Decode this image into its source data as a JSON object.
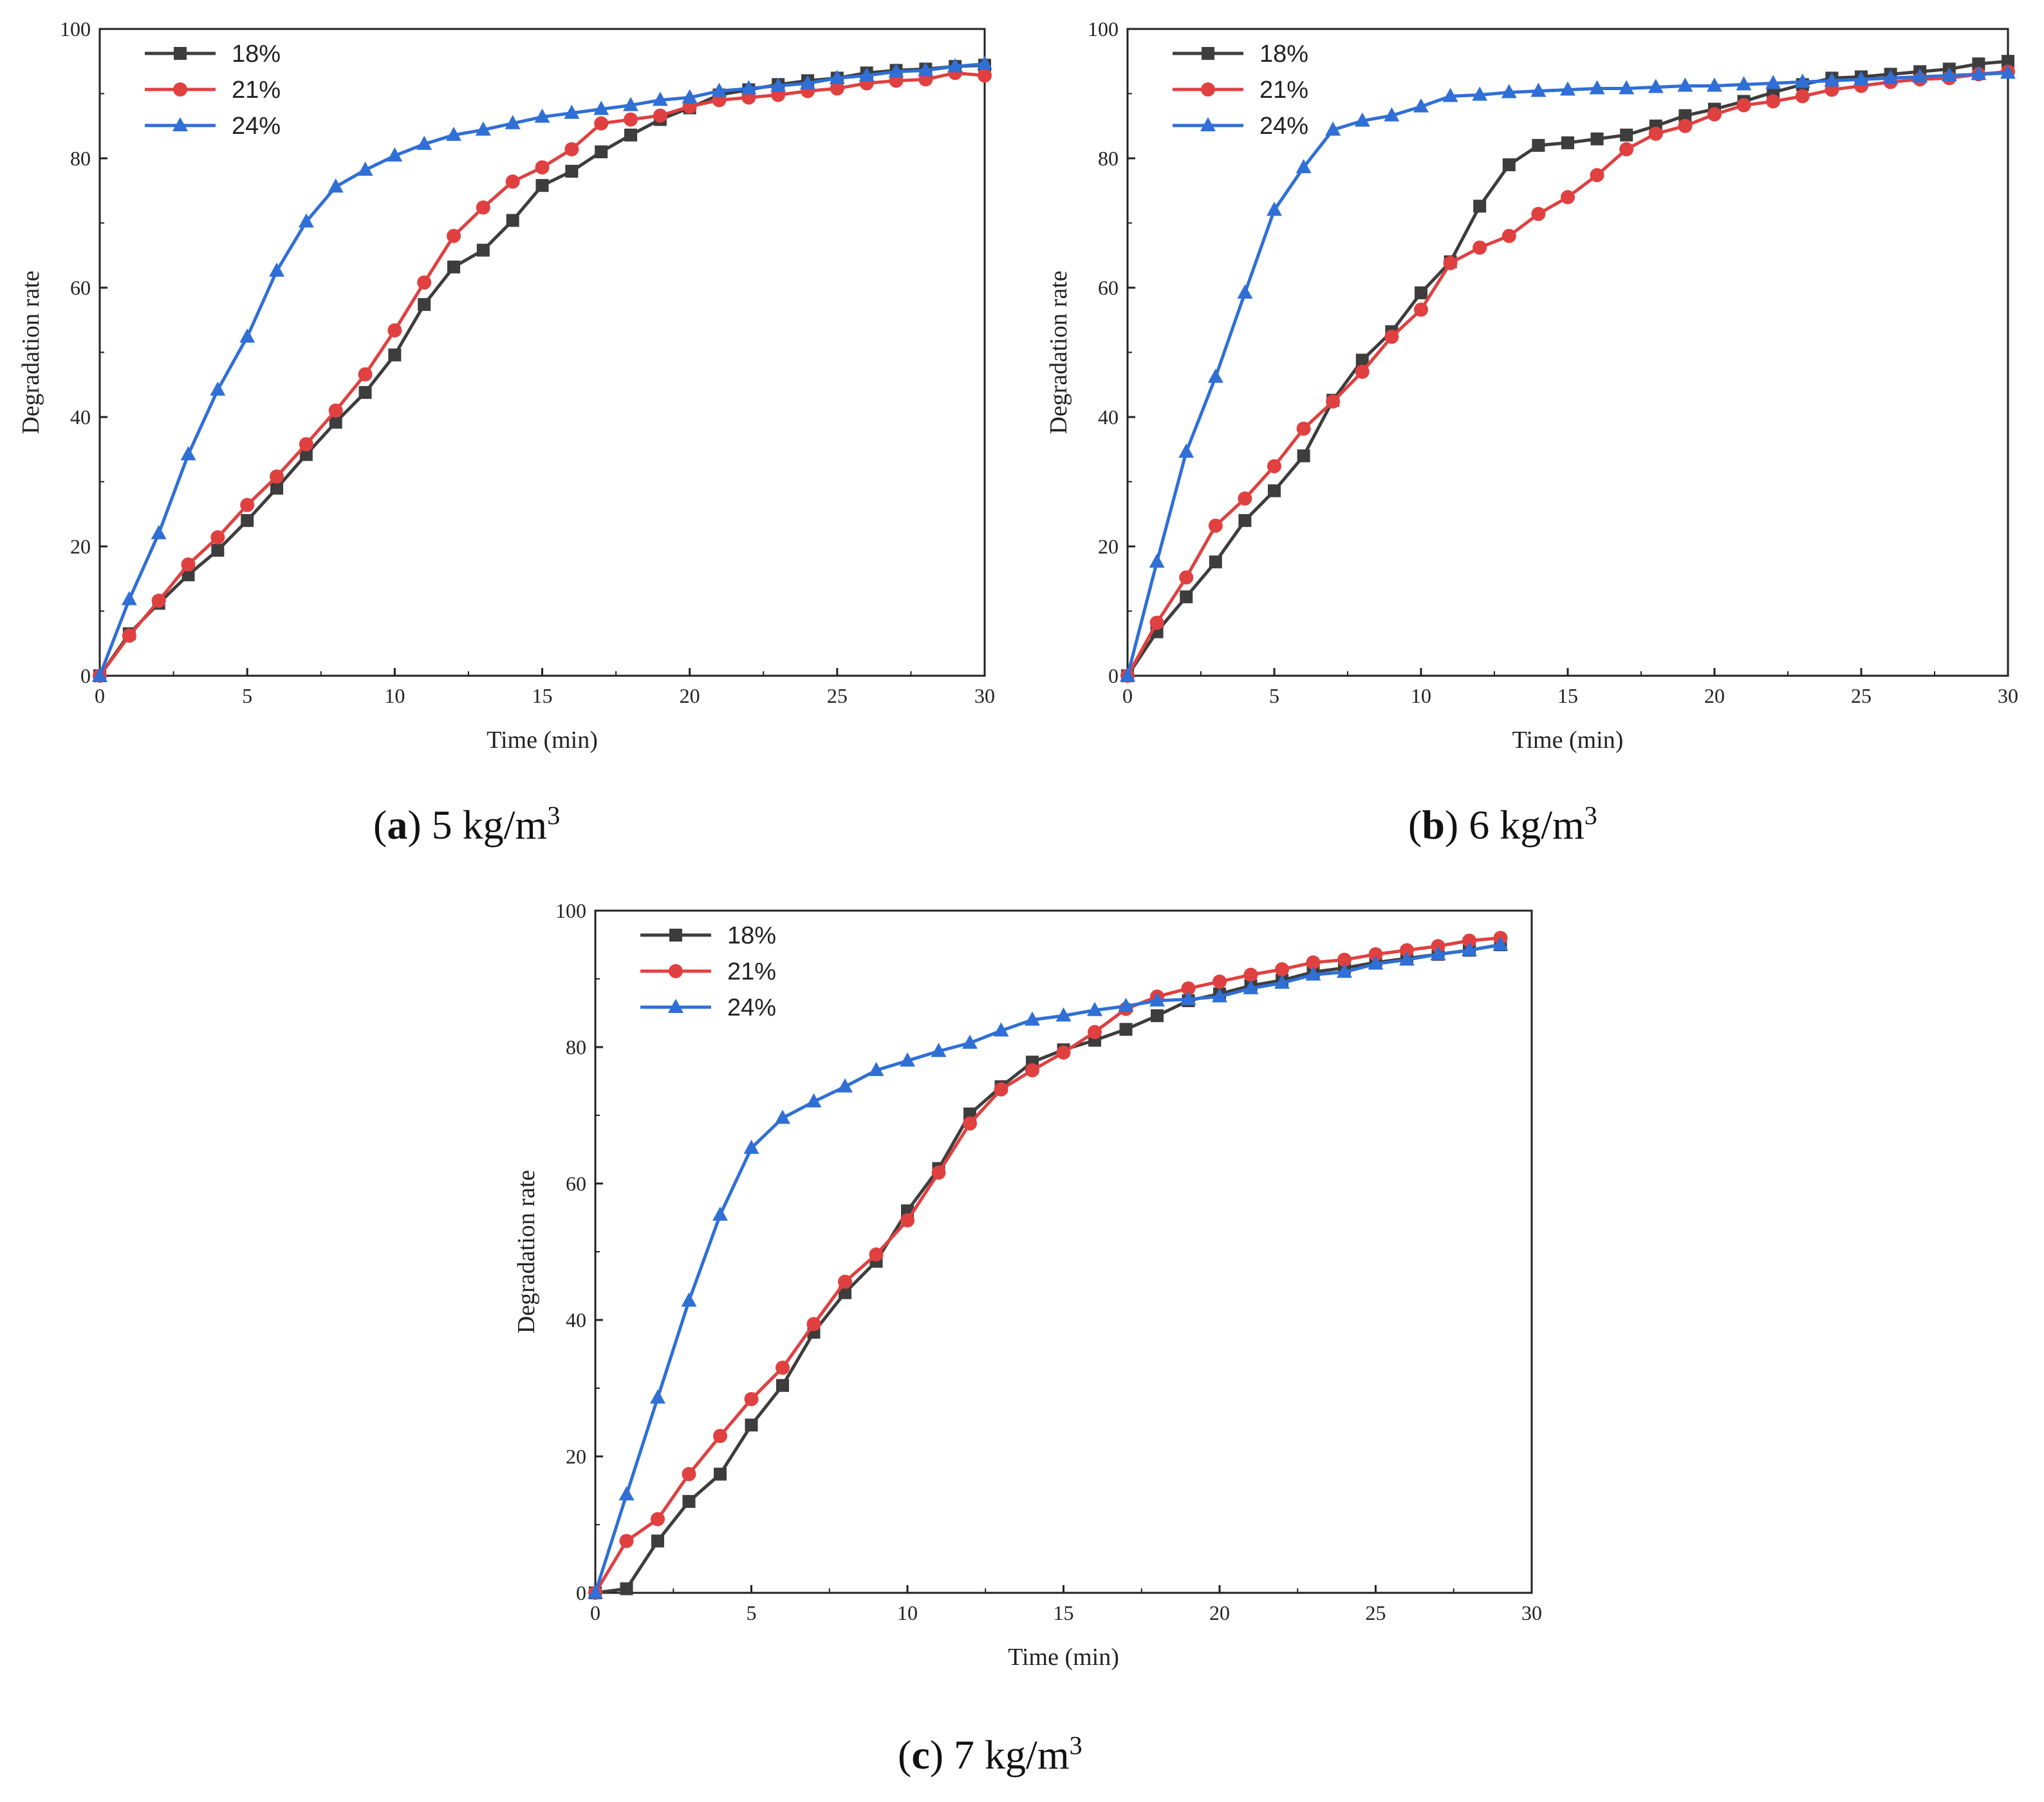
{
  "chart_data": [
    {
      "type": "line",
      "panel": "a",
      "caption": {
        "label": "a",
        "text": "5 kg/m",
        "sup": "3"
      },
      "xlabel": "Time (min)",
      "ylabel": "Degradation rate",
      "xlim": [
        0,
        30
      ],
      "ylim": [
        0,
        100
      ],
      "xticks": [
        0,
        5,
        10,
        15,
        20,
        25,
        30
      ],
      "yticks": [
        0,
        20,
        40,
        60,
        80,
        100
      ],
      "legend": "top-left",
      "series": [
        {
          "name": "18%",
          "color": "#3d3d3d",
          "marker": "square",
          "x": [
            0,
            1,
            2,
            3,
            4,
            5,
            6,
            7,
            8,
            9,
            10,
            11,
            12,
            13,
            14,
            15,
            16,
            17,
            18,
            19,
            20,
            21,
            22,
            23,
            24,
            25,
            26,
            27,
            28,
            29,
            30
          ],
          "y": [
            0,
            6.5,
            11.2,
            15.6,
            19.4,
            24,
            29,
            34.2,
            39.2,
            43.8,
            49.6,
            57.4,
            63.2,
            65.8,
            70.4,
            75.8,
            78,
            81,
            83.6,
            86,
            87.8,
            89.8,
            90.6,
            91.4,
            92,
            92.4,
            93.2,
            93.6,
            93.8,
            94.2,
            94.4
          ]
        },
        {
          "name": "21%",
          "color": "#e04040",
          "marker": "circle",
          "x": [
            0,
            1,
            2,
            3,
            4,
            5,
            6,
            7,
            8,
            9,
            10,
            11,
            12,
            13,
            14,
            15,
            16,
            17,
            18,
            19,
            20,
            21,
            22,
            23,
            24,
            25,
            26,
            27,
            28,
            29,
            30
          ],
          "y": [
            0,
            6.2,
            11.6,
            17.2,
            21.4,
            26.4,
            30.8,
            35.8,
            41,
            46.6,
            53.4,
            60.8,
            68,
            72.4,
            76.4,
            78.6,
            81.4,
            85.4,
            86,
            86.6,
            88,
            89,
            89.4,
            89.8,
            90.4,
            90.8,
            91.6,
            92,
            92.2,
            93.2,
            92.8
          ]
        },
        {
          "name": "24%",
          "color": "#2f6fd6",
          "marker": "triangle",
          "x": [
            0,
            1,
            2,
            3,
            4,
            5,
            6,
            7,
            8,
            9,
            10,
            11,
            12,
            13,
            14,
            15,
            16,
            17,
            18,
            19,
            20,
            21,
            22,
            23,
            24,
            25,
            26,
            27,
            28,
            29,
            30
          ],
          "y": [
            0,
            11.8,
            22,
            34.2,
            44.2,
            52.4,
            62.6,
            70.2,
            75.6,
            78.2,
            80.4,
            82.2,
            83.6,
            84.4,
            85.4,
            86.4,
            87,
            87.6,
            88.2,
            89,
            89.4,
            90.4,
            90.8,
            91.2,
            91.6,
            92.4,
            92.8,
            93.4,
            93.6,
            94.2,
            94.6
          ]
        }
      ]
    },
    {
      "type": "line",
      "panel": "b",
      "caption": {
        "label": "b",
        "text": "6 kg/m",
        "sup": "3"
      },
      "xlabel": "Time (min)",
      "ylabel": "Degradation rate",
      "xlim": [
        0,
        30
      ],
      "ylim": [
        0,
        100
      ],
      "xticks": [
        0,
        5,
        10,
        15,
        20,
        25,
        30
      ],
      "yticks": [
        0,
        20,
        40,
        60,
        80,
        100
      ],
      "legend": "top-left",
      "series": [
        {
          "name": "18%",
          "color": "#3d3d3d",
          "marker": "square",
          "x": [
            0,
            1,
            2,
            3,
            4,
            5,
            6,
            7,
            8,
            9,
            10,
            11,
            12,
            13,
            14,
            15,
            16,
            17,
            18,
            19,
            20,
            21,
            22,
            23,
            24,
            25,
            26,
            27,
            28,
            29,
            30
          ],
          "y": [
            0,
            6.8,
            12.2,
            17.6,
            24,
            28.6,
            34,
            42.6,
            48.8,
            53.2,
            59.2,
            64,
            72.6,
            79,
            82,
            82.4,
            83,
            83.6,
            85,
            86.6,
            87.6,
            88.8,
            90.2,
            91.4,
            92.4,
            92.6,
            93,
            93.4,
            93.8,
            94.6,
            95
          ]
        },
        {
          "name": "21%",
          "color": "#e04040",
          "marker": "circle",
          "x": [
            0,
            1,
            2,
            3,
            4,
            5,
            6,
            7,
            8,
            9,
            10,
            11,
            12,
            13,
            14,
            15,
            16,
            17,
            18,
            19,
            20,
            21,
            22,
            23,
            24,
            25,
            26,
            27,
            28,
            29,
            30
          ],
          "y": [
            0,
            8.2,
            15.2,
            23.2,
            27.4,
            32.4,
            38.2,
            42.4,
            47,
            52.4,
            56.6,
            63.8,
            66.2,
            68,
            71.4,
            74,
            77.4,
            81.4,
            83.8,
            85,
            86.8,
            88.2,
            88.8,
            89.6,
            90.6,
            91.2,
            91.8,
            92.2,
            92.4,
            93,
            93.4
          ]
        },
        {
          "name": "24%",
          "color": "#2f6fd6",
          "marker": "triangle",
          "x": [
            0,
            1,
            2,
            3,
            4,
            5,
            6,
            7,
            8,
            9,
            10,
            11,
            12,
            13,
            14,
            15,
            16,
            17,
            18,
            19,
            20,
            21,
            22,
            23,
            24,
            25,
            26,
            27,
            28,
            29,
            30
          ],
          "y": [
            0,
            17.6,
            34.6,
            46.2,
            59.2,
            72,
            78.6,
            84.4,
            85.8,
            86.6,
            88,
            89.6,
            89.8,
            90.2,
            90.4,
            90.6,
            90.8,
            90.8,
            91,
            91.2,
            91.2,
            91.4,
            91.6,
            91.8,
            92,
            92.2,
            92.4,
            92.6,
            92.8,
            93,
            93.2
          ]
        }
      ]
    },
    {
      "type": "line",
      "panel": "c",
      "caption": {
        "label": "c",
        "text": "7 kg/m",
        "sup": "3"
      },
      "xlabel": "Time (min)",
      "ylabel": "Degradation rate",
      "xlim": [
        0,
        30
      ],
      "ylim": [
        0,
        100
      ],
      "xticks": [
        0,
        5,
        10,
        15,
        20,
        25,
        30
      ],
      "yticks": [
        0,
        20,
        40,
        60,
        80,
        100
      ],
      "legend": "top-left",
      "series": [
        {
          "name": "18%",
          "color": "#3d3d3d",
          "marker": "square",
          "x": [
            0,
            1,
            2,
            3,
            4,
            5,
            6,
            7,
            8,
            9,
            10,
            11,
            12,
            13,
            14,
            15,
            16,
            17,
            18,
            19,
            20,
            21,
            22,
            23,
            24,
            25,
            26,
            27,
            28,
            29
          ],
          "y": [
            0,
            0.6,
            7.6,
            13.4,
            17.4,
            24.6,
            30.4,
            38.2,
            44,
            48.6,
            56,
            62.2,
            70.2,
            74.2,
            77.8,
            79.6,
            81,
            82.6,
            84.6,
            86.8,
            87.8,
            89,
            89.8,
            91,
            91.6,
            92.4,
            93,
            93.6,
            94.2,
            95
          ]
        },
        {
          "name": "21%",
          "color": "#e04040",
          "marker": "circle",
          "x": [
            0,
            1,
            2,
            3,
            4,
            5,
            6,
            7,
            8,
            9,
            10,
            11,
            12,
            13,
            14,
            15,
            16,
            17,
            18,
            19,
            20,
            21,
            22,
            23,
            24,
            25,
            26,
            27,
            28,
            29
          ],
          "y": [
            0,
            7.6,
            10.8,
            17.4,
            23,
            28.4,
            33,
            39.4,
            45.6,
            49.6,
            54.6,
            61.6,
            68.8,
            73.8,
            76.6,
            79.2,
            82.2,
            85.6,
            87.4,
            88.6,
            89.6,
            90.6,
            91.4,
            92.4,
            92.8,
            93.6,
            94.2,
            94.8,
            95.6,
            96
          ]
        },
        {
          "name": "24%",
          "color": "#2f6fd6",
          "marker": "triangle",
          "x": [
            0,
            1,
            2,
            3,
            4,
            5,
            6,
            7,
            8,
            9,
            10,
            11,
            12,
            13,
            14,
            15,
            16,
            17,
            18,
            19,
            20,
            21,
            22,
            23,
            24,
            25,
            26,
            27,
            28,
            29
          ],
          "y": [
            0,
            14.4,
            28.6,
            42.8,
            55.4,
            65.2,
            69.6,
            72,
            74.2,
            76.6,
            78,
            79.4,
            80.6,
            82.4,
            84,
            84.6,
            85.4,
            86,
            86.8,
            87,
            87.4,
            88.6,
            89.4,
            90.6,
            91,
            92.2,
            92.8,
            93.6,
            94.2,
            95
          ]
        }
      ]
    }
  ]
}
